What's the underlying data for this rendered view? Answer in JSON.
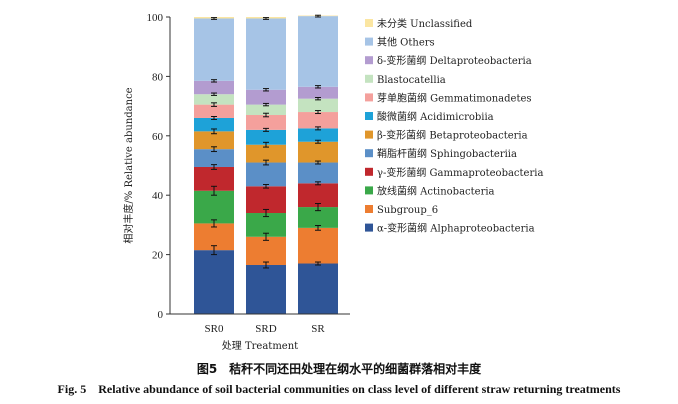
{
  "chart_data": {
    "type": "bar",
    "stacked": true,
    "categories": [
      "SR0",
      "SRD",
      "SR"
    ],
    "xlabel": "处理 Treatment",
    "ylabel": "相对丰度/% Relative abundance",
    "ylim": [
      0,
      100
    ],
    "yticks": [
      0,
      20,
      40,
      60,
      80,
      100
    ],
    "grid": false,
    "legend_position": "right",
    "series": [
      {
        "name": "α-变形菌纲 Alphaproteobacteria",
        "color": "#2f5597",
        "values": [
          21.5,
          16.5,
          17.0
        ],
        "errors": [
          1.5,
          1.0,
          0.5
        ]
      },
      {
        "name": "Subgroup_6",
        "color": "#ed7d31",
        "values": [
          9.0,
          9.5,
          12.0
        ],
        "errors": [
          1.2,
          1.2,
          0.8
        ]
      },
      {
        "name": "放线菌纲 Actinobacteria",
        "color": "#3aa849",
        "values": [
          11.0,
          8.0,
          7.0
        ],
        "errors": [
          1.5,
          1.2,
          1.2
        ]
      },
      {
        "name": "γ-变形菌纲 Gammaproteobacteria",
        "color": "#c0282d",
        "values": [
          8.0,
          9.0,
          8.0
        ],
        "errors": [
          0.8,
          0.6,
          0.5
        ]
      },
      {
        "name": "鞘脂杆菌纲 Sphingobacteriia",
        "color": "#5b8fc7",
        "values": [
          6.0,
          8.0,
          7.0
        ],
        "errors": [
          0.8,
          0.8,
          0.5
        ]
      },
      {
        "name": "β-变形菌纲 Betaproteobacteria",
        "color": "#e0962b",
        "values": [
          6.0,
          6.0,
          7.0
        ],
        "errors": [
          0.8,
          0.8,
          0.5
        ]
      },
      {
        "name": "酸微菌纲 Acidimicrobiia",
        "color": "#1ea2d8",
        "values": [
          4.5,
          5.0,
          4.5
        ],
        "errors": [
          0.5,
          0.5,
          0.5
        ]
      },
      {
        "name": "芽单胞菌纲 Gemmatimonadetes",
        "color": "#f4a09c",
        "values": [
          4.5,
          5.0,
          5.5
        ],
        "errors": [
          0.6,
          0.6,
          0.5
        ]
      },
      {
        "name": "Blastocatellia",
        "color": "#c4e3c0",
        "values": [
          3.5,
          3.5,
          4.5
        ],
        "errors": [
          0.4,
          0.4,
          0.4
        ]
      },
      {
        "name": "δ-变形菌纲 Deltaproteobacteria",
        "color": "#b39cd0",
        "values": [
          4.5,
          5.0,
          4.0
        ],
        "errors": [
          0.4,
          0.4,
          0.4
        ]
      },
      {
        "name": "其他 Others",
        "color": "#a6c4e6",
        "values": [
          21.0,
          24.0,
          23.8
        ],
        "errors": [
          0.3,
          0.3,
          0.3
        ]
      },
      {
        "name": "未分类 Unclassified",
        "color": "#fbe6a2",
        "values": [
          0.5,
          0.5,
          0.2
        ],
        "errors": [
          0,
          0,
          0
        ]
      }
    ]
  },
  "caption": {
    "cn": "图5　秸秆不同还田处理在纲水平的细菌群落相对丰度",
    "en": "Fig. 5　Relative abundance of soil bacterial communities on class level of different straw returning treatments"
  }
}
